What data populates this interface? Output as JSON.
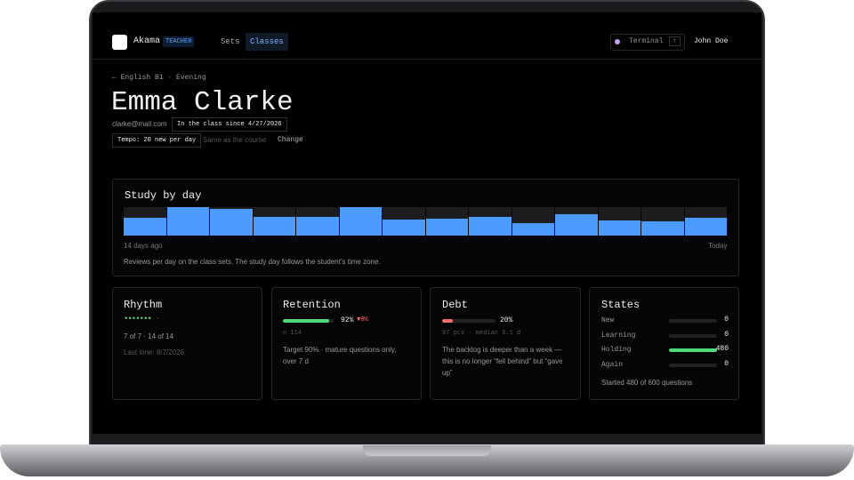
{
  "app": {
    "brand": "Akama",
    "badge": "TEACHER",
    "nav": [
      "Sets",
      "Classes"
    ],
    "terminal": "Terminal",
    "terminal_key": "↑",
    "user": "John Doe"
  },
  "header": {
    "breadcrumb": "← English B1 · Evening",
    "name": "Emma Clarke",
    "email": "clarke@mail.com",
    "since": "In the class since 4/27/2026",
    "tempo": "Tempo: 20 new per day",
    "tempo_note": "Same as the course",
    "change": "Change"
  },
  "study": {
    "title": "Study by day",
    "values": [
      62,
      100,
      94,
      66,
      66,
      100,
      56,
      59,
      66,
      44,
      75,
      53,
      50,
      62
    ],
    "ylim": [
      0,
      100
    ],
    "start_label": "14 days ago",
    "end_label": "Today",
    "caption": "Reviews per day on the class sets. The study day follows the student's time zone."
  },
  "rhythm": {
    "title": "Rhythm",
    "summary": "7 of 7 · 14 of 14",
    "last_time": "Last time: 8/7/2026"
  },
  "retention": {
    "title": "Retention",
    "value": 92,
    "value_label": "92%",
    "delta": "▼0%",
    "n": "n 114",
    "note": "Target 90% · mature questions only, over 7 d"
  },
  "debt": {
    "title": "Debt",
    "value": 20,
    "value_label": "20%",
    "sub": "97 pcs · median 6.1 d",
    "note": "The backlog is deeper than a week — this is no longer “fell behind” but “gave up”"
  },
  "states": {
    "title": "States",
    "rows": [
      {
        "label": "New",
        "value": 0
      },
      {
        "label": "Learning",
        "value": 0
      },
      {
        "label": "Holding",
        "value": 480
      },
      {
        "label": "Again",
        "value": 0
      }
    ],
    "footer": "Started 480 of 600 questions"
  }
}
